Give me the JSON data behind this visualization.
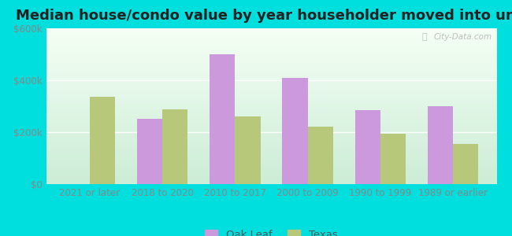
{
  "title": "Median house/condo value by year householder moved into unit",
  "categories": [
    "2021 or later",
    "2018 to 2020",
    "2010 to 2017",
    "2000 to 2009",
    "1990 to 1999",
    "1989 or earlier"
  ],
  "oak_leaf_values": [
    0,
    252000,
    500000,
    410000,
    285000,
    300000
  ],
  "texas_values": [
    335000,
    288000,
    262000,
    222000,
    193000,
    155000
  ],
  "oak_leaf_color": "#cc99dd",
  "texas_color": "#b8c87a",
  "background_outer": "#00dede",
  "ylim": [
    0,
    600000
  ],
  "yticks": [
    0,
    200000,
    400000,
    600000
  ],
  "ytick_labels": [
    "$0",
    "$200k",
    "$400k",
    "$600k"
  ],
  "bar_width": 0.35,
  "title_fontsize": 13,
  "tick_fontsize": 8.5,
  "legend_fontsize": 9.5,
  "watermark": "City-Data.com"
}
